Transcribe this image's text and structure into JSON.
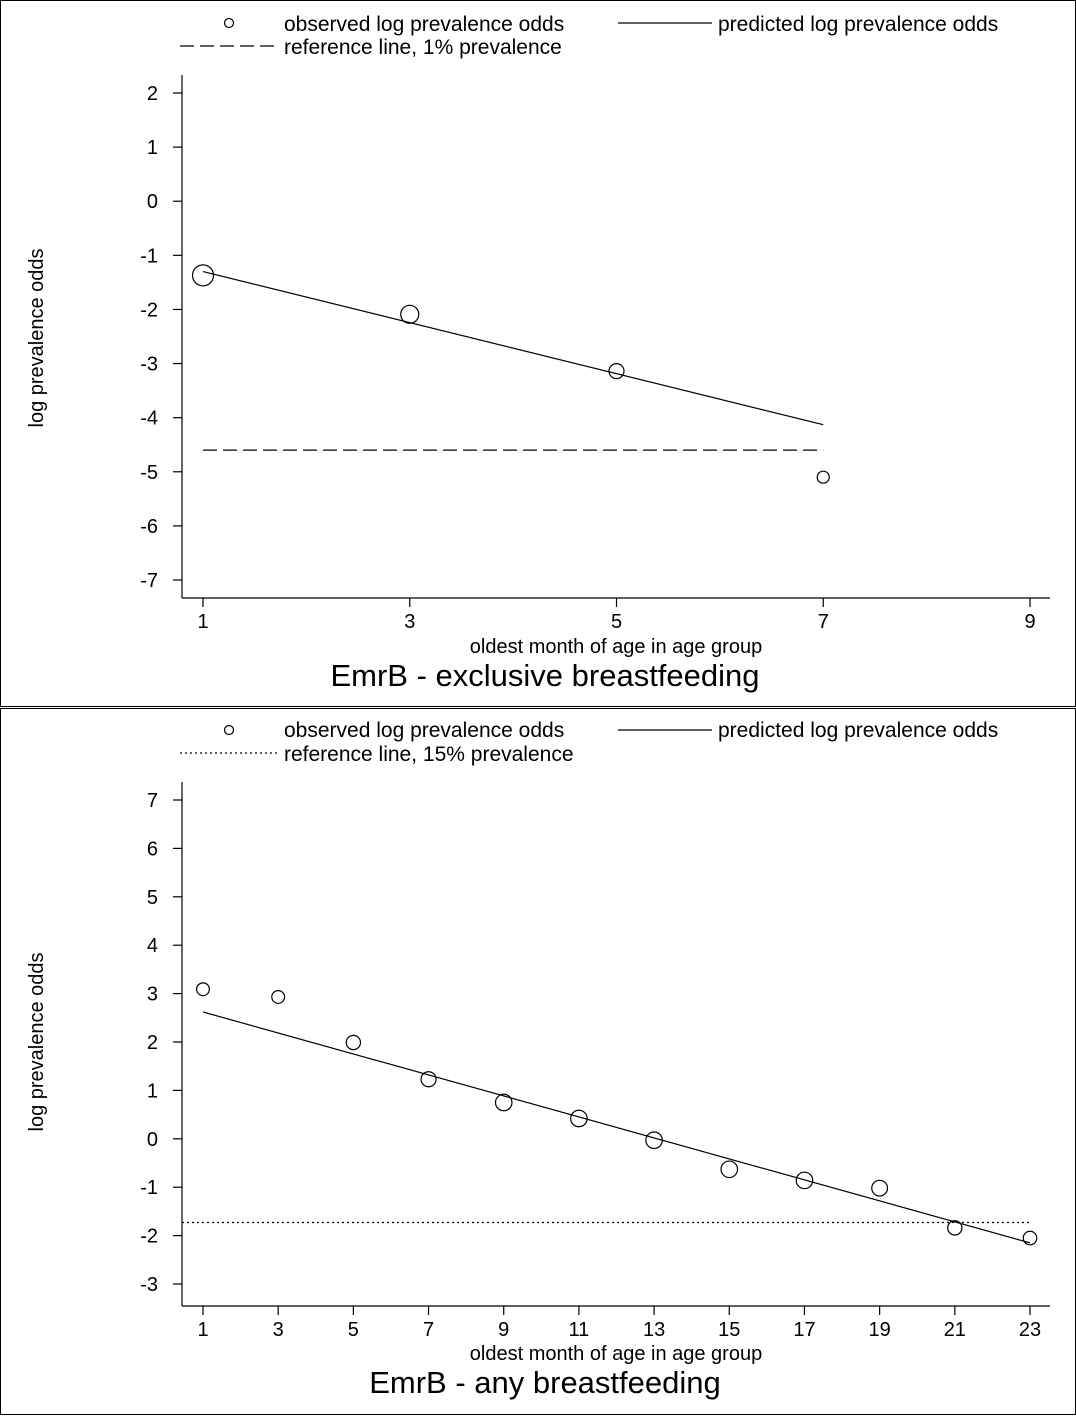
{
  "chart_data": [
    {
      "type": "scatter",
      "title": "EmrB - exclusive breastfeeding",
      "xlabel": "oldest month of age in age group",
      "ylabel": "log prevalence odds",
      "xlim": [
        0.5,
        9.5
      ],
      "ylim": [
        -7.4,
        2.4
      ],
      "xticks": [
        1,
        3,
        5,
        7,
        9
      ],
      "yticks": [
        2,
        1,
        0,
        -1,
        -2,
        -3,
        -4,
        -5,
        -6,
        -7
      ],
      "grid": false,
      "legend_position": "top",
      "marker_size_note": "",
      "series": [
        {
          "name": "observed log prevalence odds",
          "kind": "markers",
          "x": [
            1,
            3,
            5,
            7
          ],
          "y": [
            -1.37,
            -2.09,
            -3.14,
            -5.1
          ],
          "weights": [
            1.0,
            0.8,
            0.6,
            0.4
          ]
        },
        {
          "name": "predicted log prevalence odds",
          "kind": "line",
          "style": "solid",
          "x": [
            1,
            7
          ],
          "y": [
            -1.3,
            -4.13
          ]
        },
        {
          "name": "reference line, 1% prevalence",
          "kind": "line",
          "style": "dashed",
          "x": [
            1,
            7
          ],
          "y": [
            -4.6,
            -4.6
          ]
        }
      ]
    },
    {
      "type": "scatter",
      "title": "EmrB - any breastfeeding",
      "xlabel": "oldest month of age in age group",
      "ylabel": "log prevalence odds",
      "xlim": [
        0.2,
        23.9
      ],
      "ylim": [
        -3.4,
        7.4
      ],
      "xticks": [
        1,
        3,
        5,
        7,
        9,
        11,
        13,
        15,
        17,
        19,
        21,
        23
      ],
      "yticks": [
        7,
        6,
        5,
        4,
        3,
        2,
        1,
        0,
        -1,
        -2,
        -3
      ],
      "grid": false,
      "legend_position": "top",
      "series": [
        {
          "name": "observed log prevalence odds",
          "kind": "markers",
          "x": [
            1,
            3,
            5,
            7,
            9,
            11,
            13,
            15,
            17,
            19,
            21,
            23
          ],
          "y": [
            3.09,
            2.93,
            1.99,
            1.23,
            0.75,
            0.42,
            -0.03,
            -0.63,
            -0.86,
            -1.02,
            -1.84,
            -2.05
          ],
          "weights": [
            0.45,
            0.45,
            0.55,
            0.6,
            0.7,
            0.7,
            0.7,
            0.7,
            0.7,
            0.65,
            0.55,
            0.5
          ]
        },
        {
          "name": "predicted log prevalence odds",
          "kind": "line",
          "style": "solid",
          "x": [
            1,
            23
          ],
          "y": [
            2.62,
            -2.15
          ]
        },
        {
          "name": "reference line, 15% prevalence",
          "kind": "line",
          "style": "dotted",
          "x": [
            0.2,
            23
          ],
          "y": [
            -1.73,
            -1.73
          ]
        }
      ]
    }
  ]
}
